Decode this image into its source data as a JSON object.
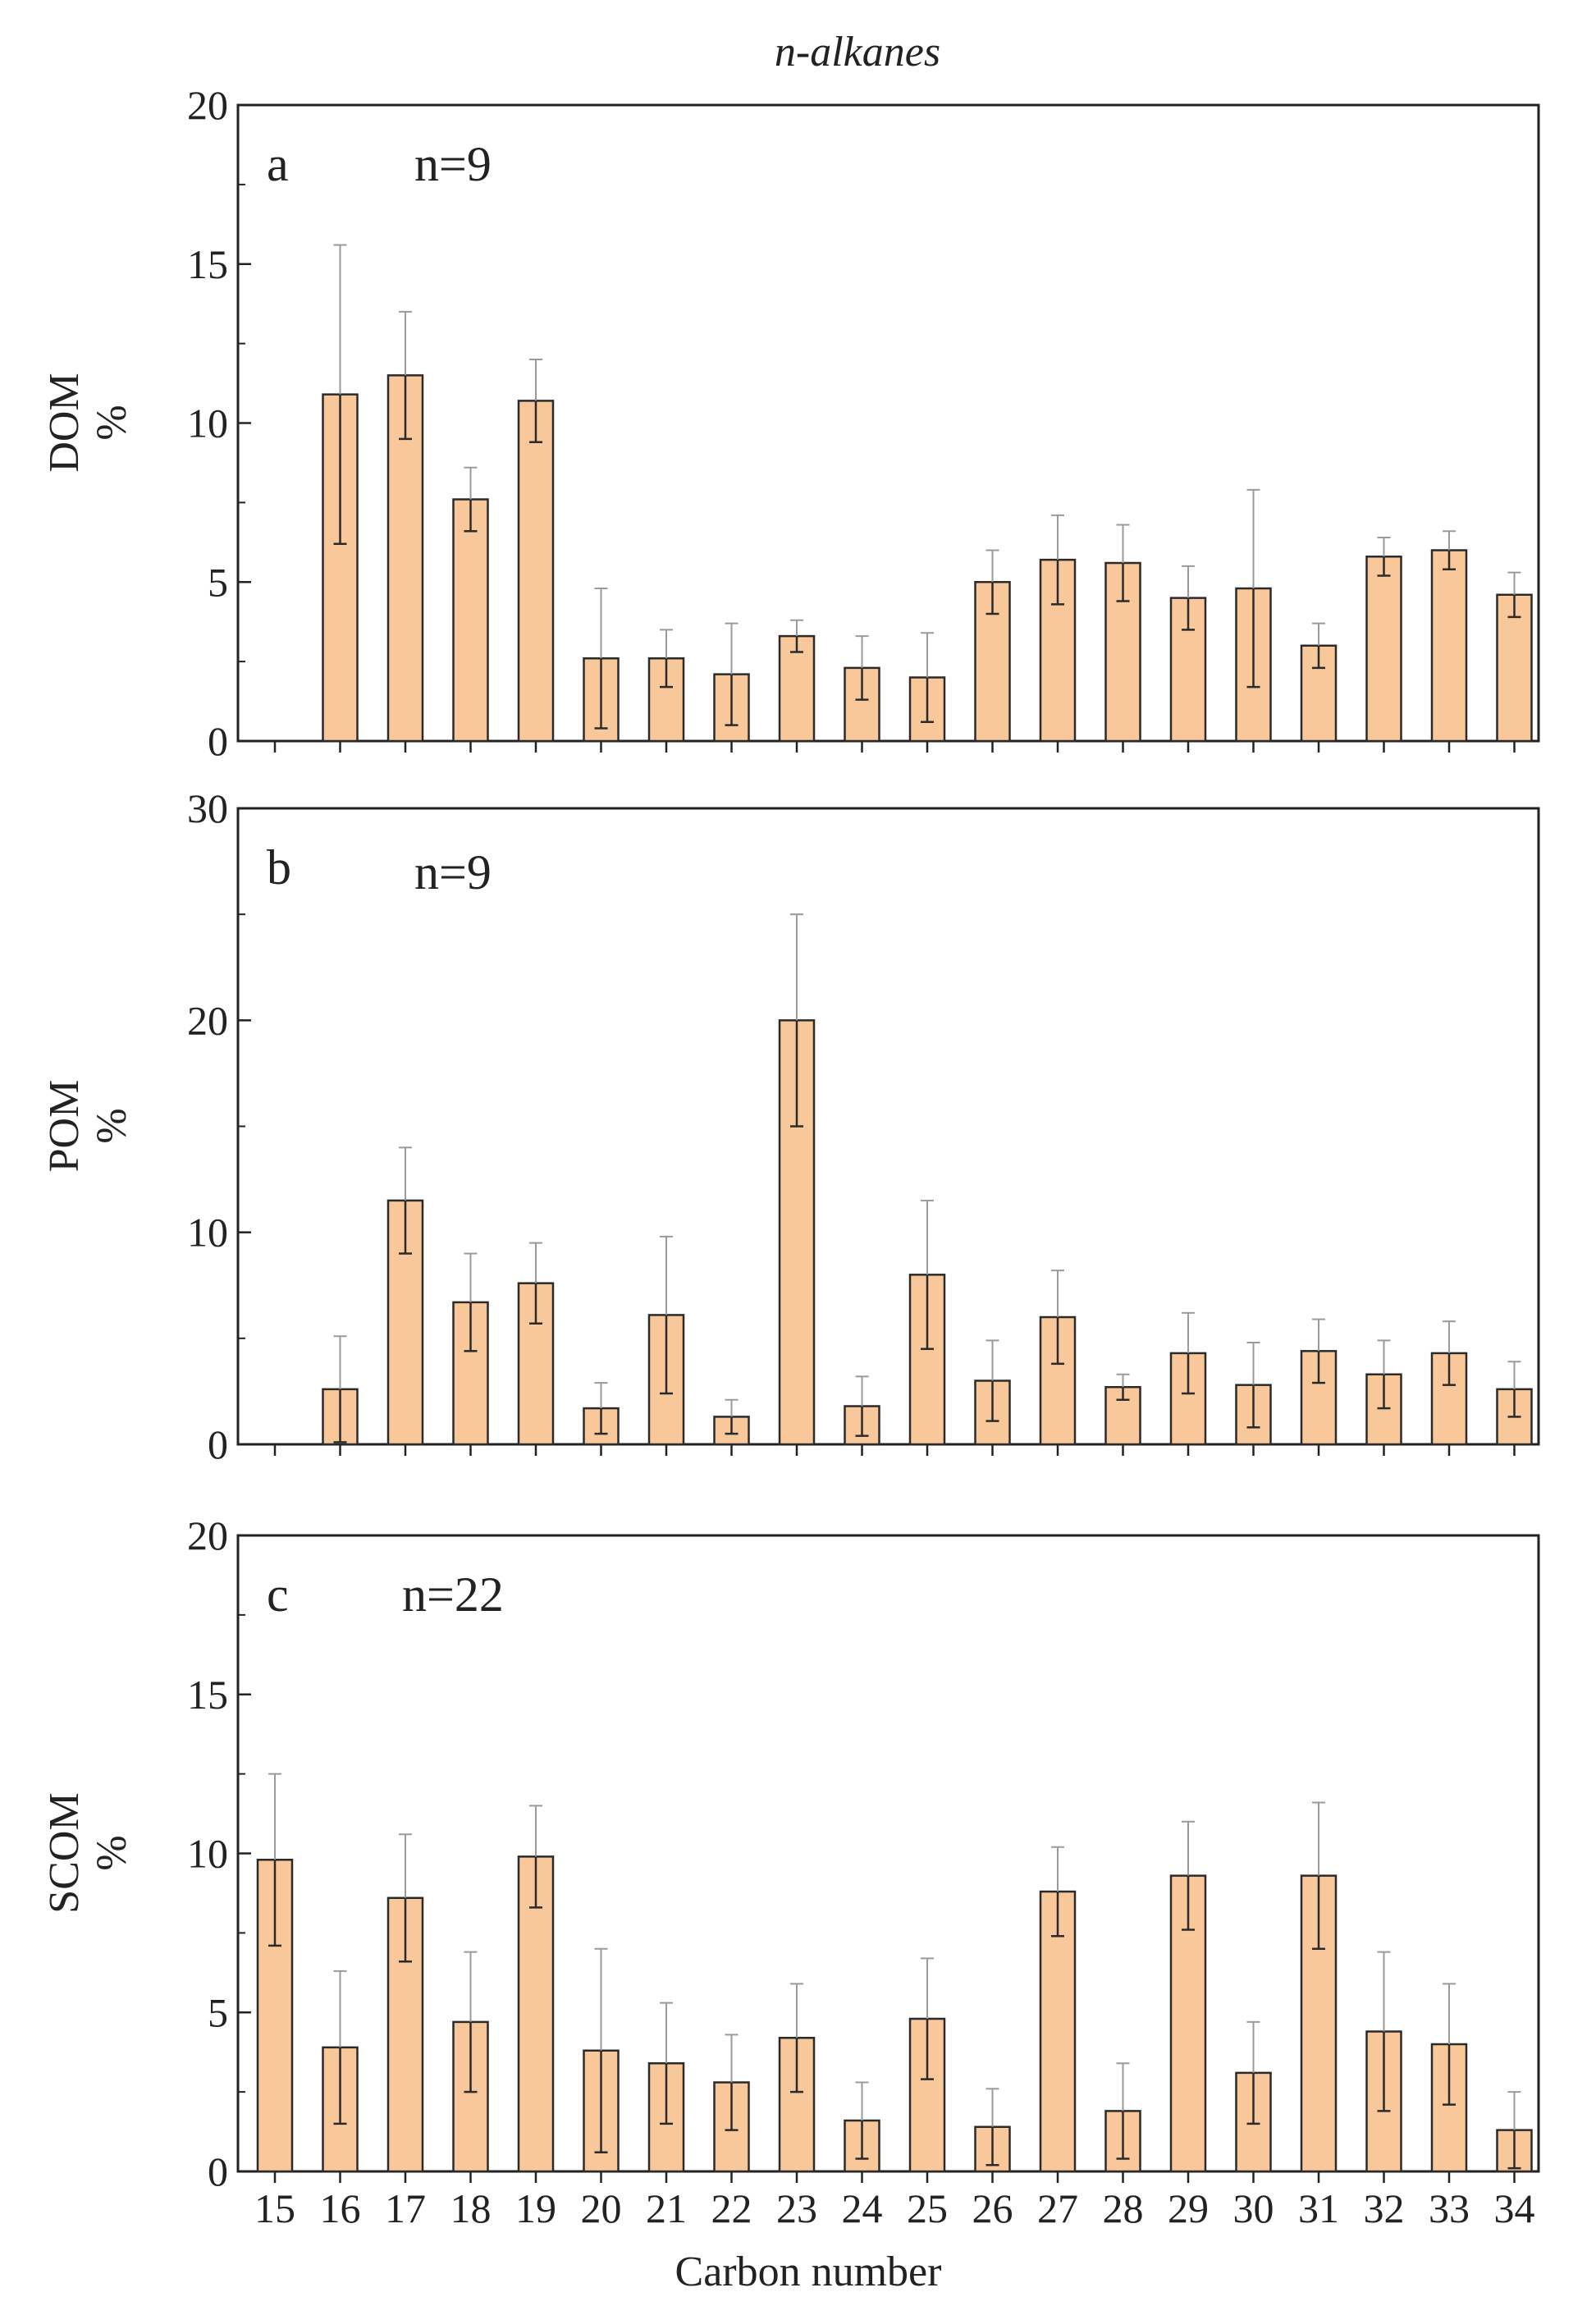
{
  "chart_data": [
    {
      "type": "bar",
      "title": "n-alkanes",
      "panel": "a",
      "n_label": "n=9",
      "ylabel_line1": "DOM",
      "ylabel_line2": "%",
      "xlabel": "",
      "ylim": [
        0,
        20
      ],
      "yticks": [
        0,
        5,
        10,
        15,
        20
      ],
      "categories": [
        "15",
        "16",
        "17",
        "18",
        "19",
        "20",
        "21",
        "22",
        "23",
        "24",
        "25",
        "26",
        "27",
        "28",
        "29",
        "30",
        "31",
        "32",
        "33",
        "34"
      ],
      "values": [
        null,
        10.9,
        11.5,
        7.6,
        10.7,
        2.6,
        2.6,
        2.1,
        3.3,
        2.3,
        2.0,
        5.0,
        5.7,
        5.6,
        4.5,
        4.8,
        3.0,
        5.8,
        6.0,
        4.6
      ],
      "errors": [
        null,
        4.7,
        2.0,
        1.0,
        1.3,
        2.2,
        0.9,
        1.6,
        0.5,
        1.0,
        1.4,
        1.0,
        1.4,
        1.2,
        1.0,
        3.1,
        0.7,
        0.6,
        0.6,
        0.7
      ],
      "bar_color": "#f8c89a"
    },
    {
      "type": "bar",
      "panel": "b",
      "n_label": "n=9",
      "ylabel_line1": "POM",
      "ylabel_line2": "%",
      "xlabel": "",
      "ylim": [
        0,
        30
      ],
      "yticks": [
        0,
        10,
        20,
        30
      ],
      "categories": [
        "15",
        "16",
        "17",
        "18",
        "19",
        "20",
        "21",
        "22",
        "23",
        "24",
        "25",
        "26",
        "27",
        "28",
        "29",
        "30",
        "31",
        "32",
        "33",
        "34"
      ],
      "values": [
        null,
        2.6,
        11.5,
        6.7,
        7.6,
        1.7,
        6.1,
        1.3,
        20.0,
        1.8,
        8.0,
        3.0,
        6.0,
        2.7,
        4.3,
        2.8,
        4.4,
        3.3,
        4.3,
        2.6
      ],
      "errors": [
        null,
        2.5,
        2.5,
        2.3,
        1.9,
        1.2,
        3.7,
        0.8,
        5.0,
        1.4,
        3.5,
        1.9,
        2.2,
        0.6,
        1.9,
        2.0,
        1.5,
        1.6,
        1.5,
        1.3
      ],
      "bar_color": "#f8c89a"
    },
    {
      "type": "bar",
      "panel": "c",
      "n_label": "n=22",
      "ylabel_line1": "SCOM",
      "ylabel_line2": "%",
      "xlabel": "Carbon number",
      "ylim": [
        0,
        20
      ],
      "yticks": [
        0,
        5,
        10,
        15,
        20
      ],
      "categories": [
        "15",
        "16",
        "17",
        "18",
        "19",
        "20",
        "21",
        "22",
        "23",
        "24",
        "25",
        "26",
        "27",
        "28",
        "29",
        "30",
        "31",
        "32",
        "33",
        "34"
      ],
      "values": [
        9.8,
        3.9,
        8.6,
        4.7,
        9.9,
        3.8,
        3.4,
        2.8,
        4.2,
        1.6,
        4.8,
        1.4,
        8.8,
        1.9,
        9.3,
        3.1,
        9.3,
        4.4,
        4.0,
        1.3
      ],
      "errors": [
        2.7,
        2.4,
        2.0,
        2.2,
        1.6,
        3.2,
        1.9,
        1.5,
        1.7,
        1.2,
        1.9,
        1.2,
        1.4,
        1.5,
        1.7,
        1.6,
        2.3,
        2.5,
        1.9,
        1.2
      ],
      "bar_color": "#f8c89a"
    }
  ]
}
